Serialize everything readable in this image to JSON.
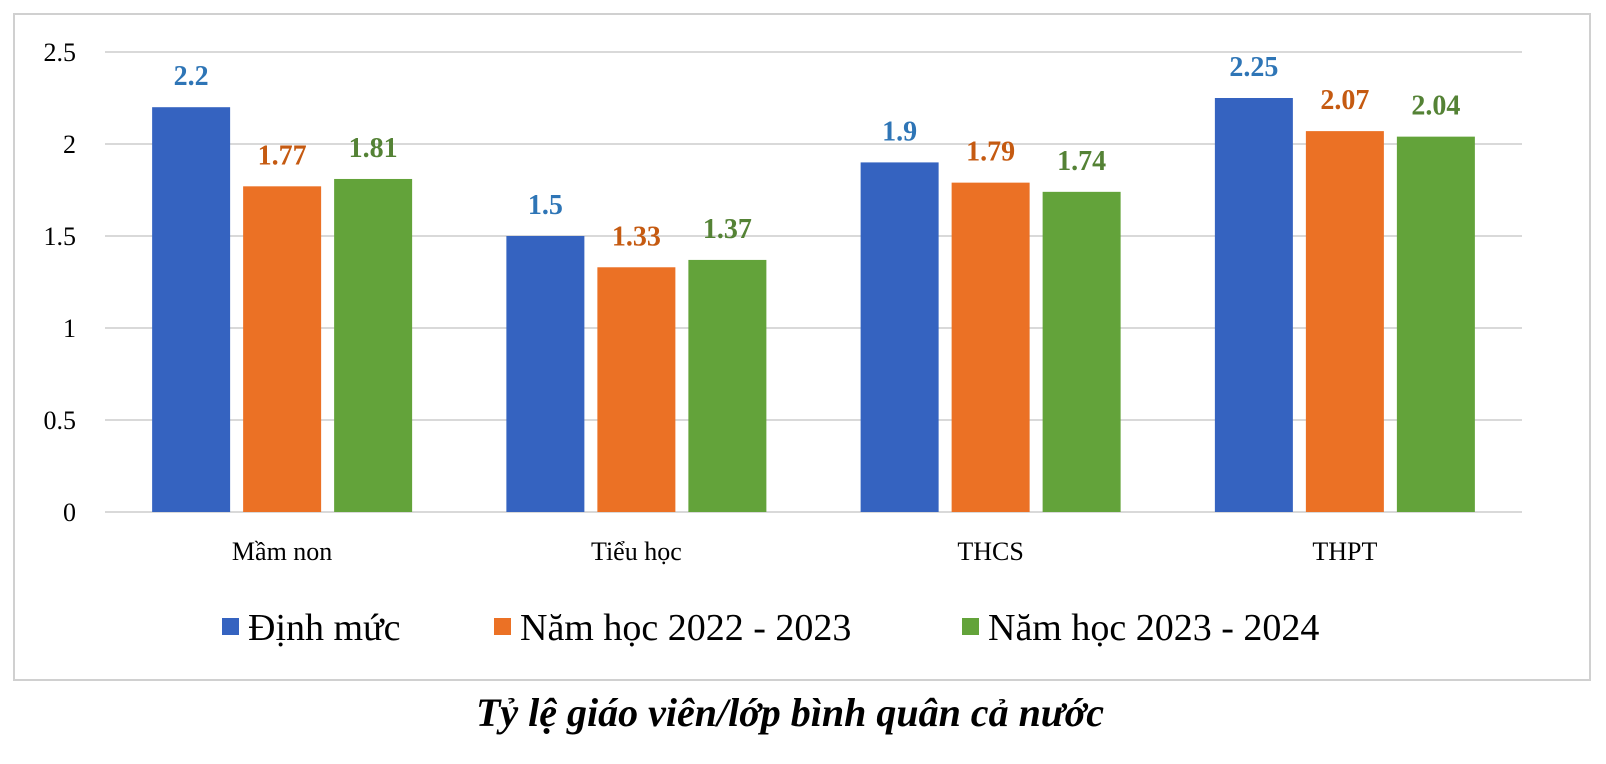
{
  "chart_data": {
    "type": "bar",
    "title": "Tỷ lệ giáo viên/lớp bình quân cả nước",
    "categories": [
      "Mầm non",
      "Tiểu học",
      "THCS",
      "THPT"
    ],
    "series": [
      {
        "name": "Định mức",
        "values": [
          2.2,
          1.5,
          1.9,
          2.25
        ],
        "color": "#3563C0",
        "label_color": "#2E75B6"
      },
      {
        "name": "Năm học 2022 - 2023",
        "values": [
          1.77,
          1.33,
          1.79,
          2.07
        ],
        "color": "#EB7125",
        "label_color": "#C55A11"
      },
      {
        "name": "Năm học 2023 - 2024",
        "values": [
          1.81,
          1.37,
          1.74,
          2.04
        ],
        "color": "#63A33A",
        "label_color": "#548235"
      }
    ],
    "yticks": [
      "0",
      "0.5",
      "1",
      "1.5",
      "2",
      "2.5"
    ],
    "ylim": [
      0,
      2.5
    ],
    "grid": true,
    "legend_position": "bottom",
    "xlabel": "",
    "ylabel": ""
  }
}
